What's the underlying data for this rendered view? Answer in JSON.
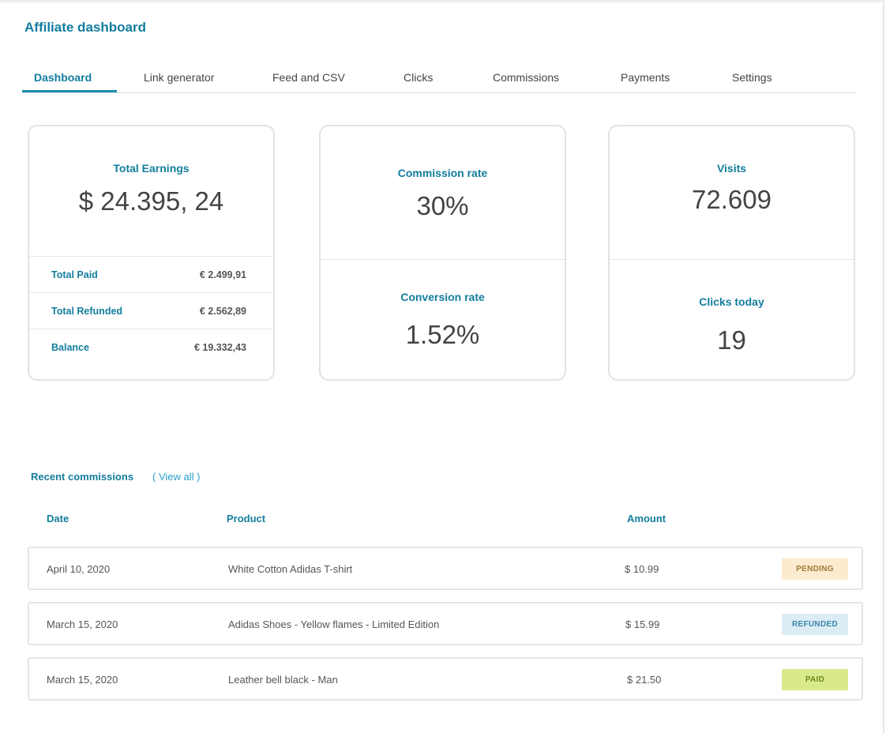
{
  "header": {
    "title": "Affiliate dashboard"
  },
  "tabs": [
    {
      "label": "Dashboard",
      "active": true
    },
    {
      "label": "Link generator"
    },
    {
      "label": "Feed and CSV"
    },
    {
      "label": "Clicks"
    },
    {
      "label": "Commissions"
    },
    {
      "label": "Payments"
    },
    {
      "label": "Settings"
    }
  ],
  "earnings": {
    "label": "Total Earnings",
    "value": "$ 24.395, 24",
    "rows": [
      {
        "label": "Total Paid",
        "value": "€ 2.499,91"
      },
      {
        "label": "Total Refunded",
        "value": "€ 2.562,89"
      },
      {
        "label": "Balance",
        "value": "€ 19.332,43"
      }
    ]
  },
  "rates": {
    "commission_label": "Commission rate",
    "commission_value": "30%",
    "conversion_label": "Conversion rate",
    "conversion_value": "1.52%"
  },
  "traffic": {
    "visits_label": "Visits",
    "visits_value": "72.609",
    "clicks_label": "Clicks today",
    "clicks_value": "19"
  },
  "recent": {
    "title": "Recent commissions",
    "view_all": "( View all )",
    "columns": {
      "date": "Date",
      "product": "Product",
      "amount": "Amount"
    },
    "rows": [
      {
        "date": "April 10, 2020",
        "product": "White Cotton Adidas T-shirt",
        "amount": "$ 10.99",
        "status": "PENDING"
      },
      {
        "date": "March 15, 2020",
        "product": "Adidas Shoes - Yellow flames - Limited Edition",
        "amount": "$ 15.99",
        "status": "REFUNDED"
      },
      {
        "date": "March 15, 2020",
        "product": "Leather bell black - Man",
        "amount": "$ 21.50",
        "status": "PAID"
      }
    ]
  },
  "colors": {
    "accent": "#137d9e",
    "pending_bg": "#fcebcf",
    "refunded_bg": "#dcecf5",
    "paid_bg": "#d9ea8c"
  }
}
